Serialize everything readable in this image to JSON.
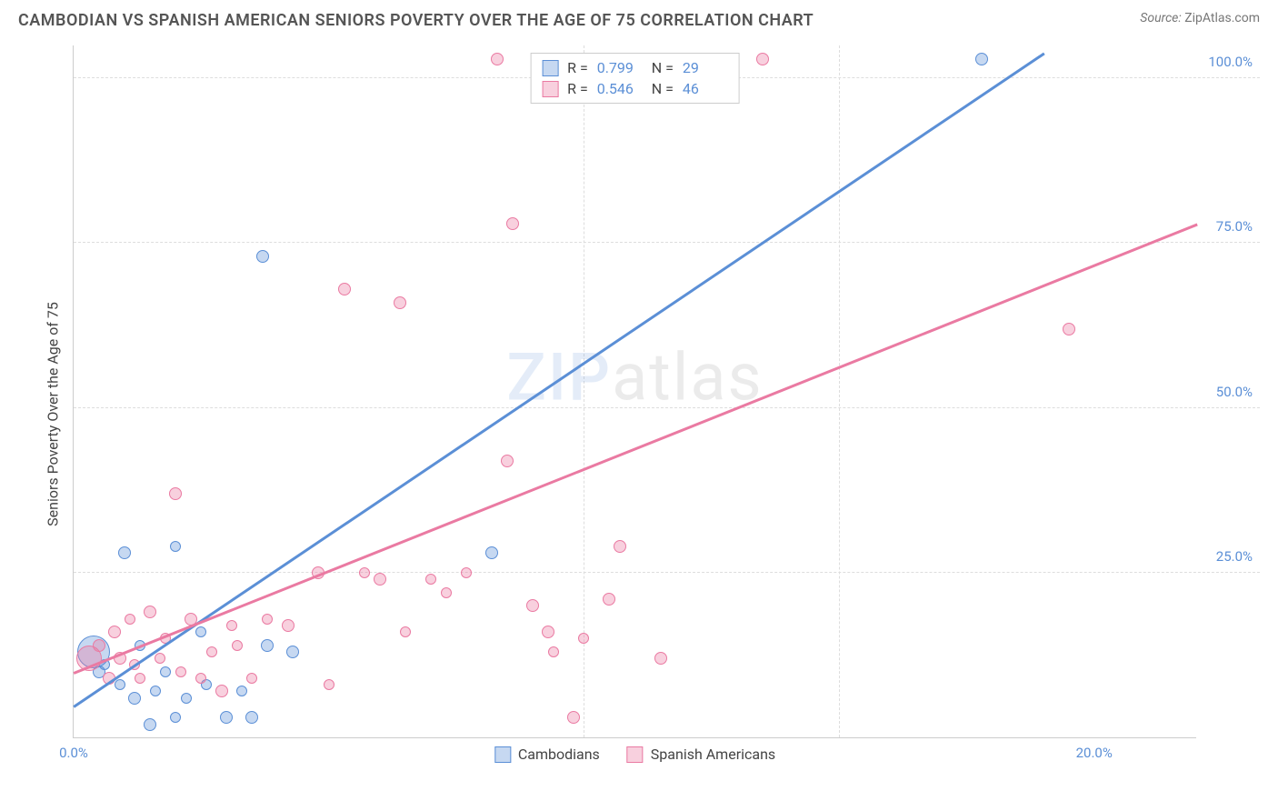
{
  "header": {
    "title": "CAMBODIAN VS SPANISH AMERICAN SENIORS POVERTY OVER THE AGE OF 75 CORRELATION CHART",
    "source_label": "Source:",
    "source_value": "ZipAtlas.com"
  },
  "chart": {
    "type": "scatter",
    "y_axis_label": "Seniors Poverty Over the Age of 75",
    "x_range": [
      0,
      22
    ],
    "y_range": [
      0,
      105
    ],
    "x_ticks": [
      {
        "v": 0,
        "label": "0.0%"
      },
      {
        "v": 20,
        "label": "20.0%"
      }
    ],
    "y_ticks": [
      {
        "v": 25,
        "label": "25.0%"
      },
      {
        "v": 50,
        "label": "50.0%"
      },
      {
        "v": 75,
        "label": "75.0%"
      },
      {
        "v": 100,
        "label": "100.0%"
      }
    ],
    "gridlines_v": [
      10,
      15
    ],
    "watermark": {
      "part1": "ZIP",
      "part2": "atlas"
    },
    "series": [
      {
        "name": "Cambodians",
        "color_fill": "rgba(91,143,214,0.35)",
        "color_stroke": "#5b8fd6",
        "r_value": "0.799",
        "n_value": "29",
        "regression": {
          "x1": 0,
          "y1": 5,
          "x2": 19,
          "y2": 104
        },
        "points": [
          {
            "x": 0.4,
            "y": 13,
            "r": 18
          },
          {
            "x": 0.5,
            "y": 10,
            "r": 7
          },
          {
            "x": 0.6,
            "y": 11,
            "r": 6
          },
          {
            "x": 0.9,
            "y": 8,
            "r": 6
          },
          {
            "x": 1.0,
            "y": 28,
            "r": 7
          },
          {
            "x": 1.2,
            "y": 6,
            "r": 7
          },
          {
            "x": 1.3,
            "y": 14,
            "r": 6
          },
          {
            "x": 1.5,
            "y": 2,
            "r": 7
          },
          {
            "x": 1.6,
            "y": 7,
            "r": 6
          },
          {
            "x": 1.8,
            "y": 10,
            "r": 6
          },
          {
            "x": 2.0,
            "y": 3,
            "r": 6
          },
          {
            "x": 2.0,
            "y": 29,
            "r": 6
          },
          {
            "x": 2.2,
            "y": 6,
            "r": 6
          },
          {
            "x": 2.5,
            "y": 16,
            "r": 6
          },
          {
            "x": 2.6,
            "y": 8,
            "r": 6
          },
          {
            "x": 3.0,
            "y": 3,
            "r": 7
          },
          {
            "x": 3.3,
            "y": 7,
            "r": 6
          },
          {
            "x": 3.5,
            "y": 3,
            "r": 7
          },
          {
            "x": 3.7,
            "y": 73,
            "r": 7
          },
          {
            "x": 3.8,
            "y": 14,
            "r": 7
          },
          {
            "x": 4.3,
            "y": 13,
            "r": 7
          },
          {
            "x": 8.2,
            "y": 28,
            "r": 7
          },
          {
            "x": 17.8,
            "y": 103,
            "r": 7
          }
        ]
      },
      {
        "name": "Spanish Americans",
        "color_fill": "rgba(235,120,160,0.35)",
        "color_stroke": "#ea7aa2",
        "r_value": "0.546",
        "n_value": "46",
        "regression": {
          "x1": 0,
          "y1": 10,
          "x2": 22,
          "y2": 78
        },
        "points": [
          {
            "x": 0.3,
            "y": 12,
            "r": 14
          },
          {
            "x": 0.5,
            "y": 14,
            "r": 7
          },
          {
            "x": 0.7,
            "y": 9,
            "r": 7
          },
          {
            "x": 0.8,
            "y": 16,
            "r": 7
          },
          {
            "x": 0.9,
            "y": 12,
            "r": 7
          },
          {
            "x": 1.1,
            "y": 18,
            "r": 6
          },
          {
            "x": 1.2,
            "y": 11,
            "r": 6
          },
          {
            "x": 1.3,
            "y": 9,
            "r": 6
          },
          {
            "x": 1.5,
            "y": 19,
            "r": 7
          },
          {
            "x": 1.7,
            "y": 12,
            "r": 6
          },
          {
            "x": 1.8,
            "y": 15,
            "r": 6
          },
          {
            "x": 2.0,
            "y": 37,
            "r": 7
          },
          {
            "x": 2.1,
            "y": 10,
            "r": 6
          },
          {
            "x": 2.3,
            "y": 18,
            "r": 7
          },
          {
            "x": 2.5,
            "y": 9,
            "r": 6
          },
          {
            "x": 2.7,
            "y": 13,
            "r": 6
          },
          {
            "x": 2.9,
            "y": 7,
            "r": 7
          },
          {
            "x": 3.1,
            "y": 17,
            "r": 6
          },
          {
            "x": 3.2,
            "y": 14,
            "r": 6
          },
          {
            "x": 3.5,
            "y": 9,
            "r": 6
          },
          {
            "x": 3.8,
            "y": 18,
            "r": 6
          },
          {
            "x": 4.2,
            "y": 17,
            "r": 7
          },
          {
            "x": 4.8,
            "y": 25,
            "r": 7
          },
          {
            "x": 5.0,
            "y": 8,
            "r": 6
          },
          {
            "x": 5.3,
            "y": 68,
            "r": 7
          },
          {
            "x": 5.7,
            "y": 25,
            "r": 6
          },
          {
            "x": 6.0,
            "y": 24,
            "r": 7
          },
          {
            "x": 6.4,
            "y": 66,
            "r": 7
          },
          {
            "x": 6.5,
            "y": 16,
            "r": 6
          },
          {
            "x": 7.0,
            "y": 24,
            "r": 6
          },
          {
            "x": 7.3,
            "y": 22,
            "r": 6
          },
          {
            "x": 7.7,
            "y": 25,
            "r": 6
          },
          {
            "x": 8.3,
            "y": 103,
            "r": 7
          },
          {
            "x": 8.5,
            "y": 42,
            "r": 7
          },
          {
            "x": 8.6,
            "y": 78,
            "r": 7
          },
          {
            "x": 9.0,
            "y": 20,
            "r": 7
          },
          {
            "x": 9.3,
            "y": 16,
            "r": 7
          },
          {
            "x": 9.4,
            "y": 13,
            "r": 6
          },
          {
            "x": 9.8,
            "y": 3,
            "r": 7
          },
          {
            "x": 10.0,
            "y": 15,
            "r": 6
          },
          {
            "x": 10.5,
            "y": 21,
            "r": 7
          },
          {
            "x": 10.7,
            "y": 29,
            "r": 7
          },
          {
            "x": 11.5,
            "y": 12,
            "r": 7
          },
          {
            "x": 13.5,
            "y": 103,
            "r": 7
          },
          {
            "x": 19.5,
            "y": 62,
            "r": 7
          }
        ]
      }
    ]
  },
  "legend_stats_labels": {
    "r": "R =",
    "n": "N ="
  }
}
